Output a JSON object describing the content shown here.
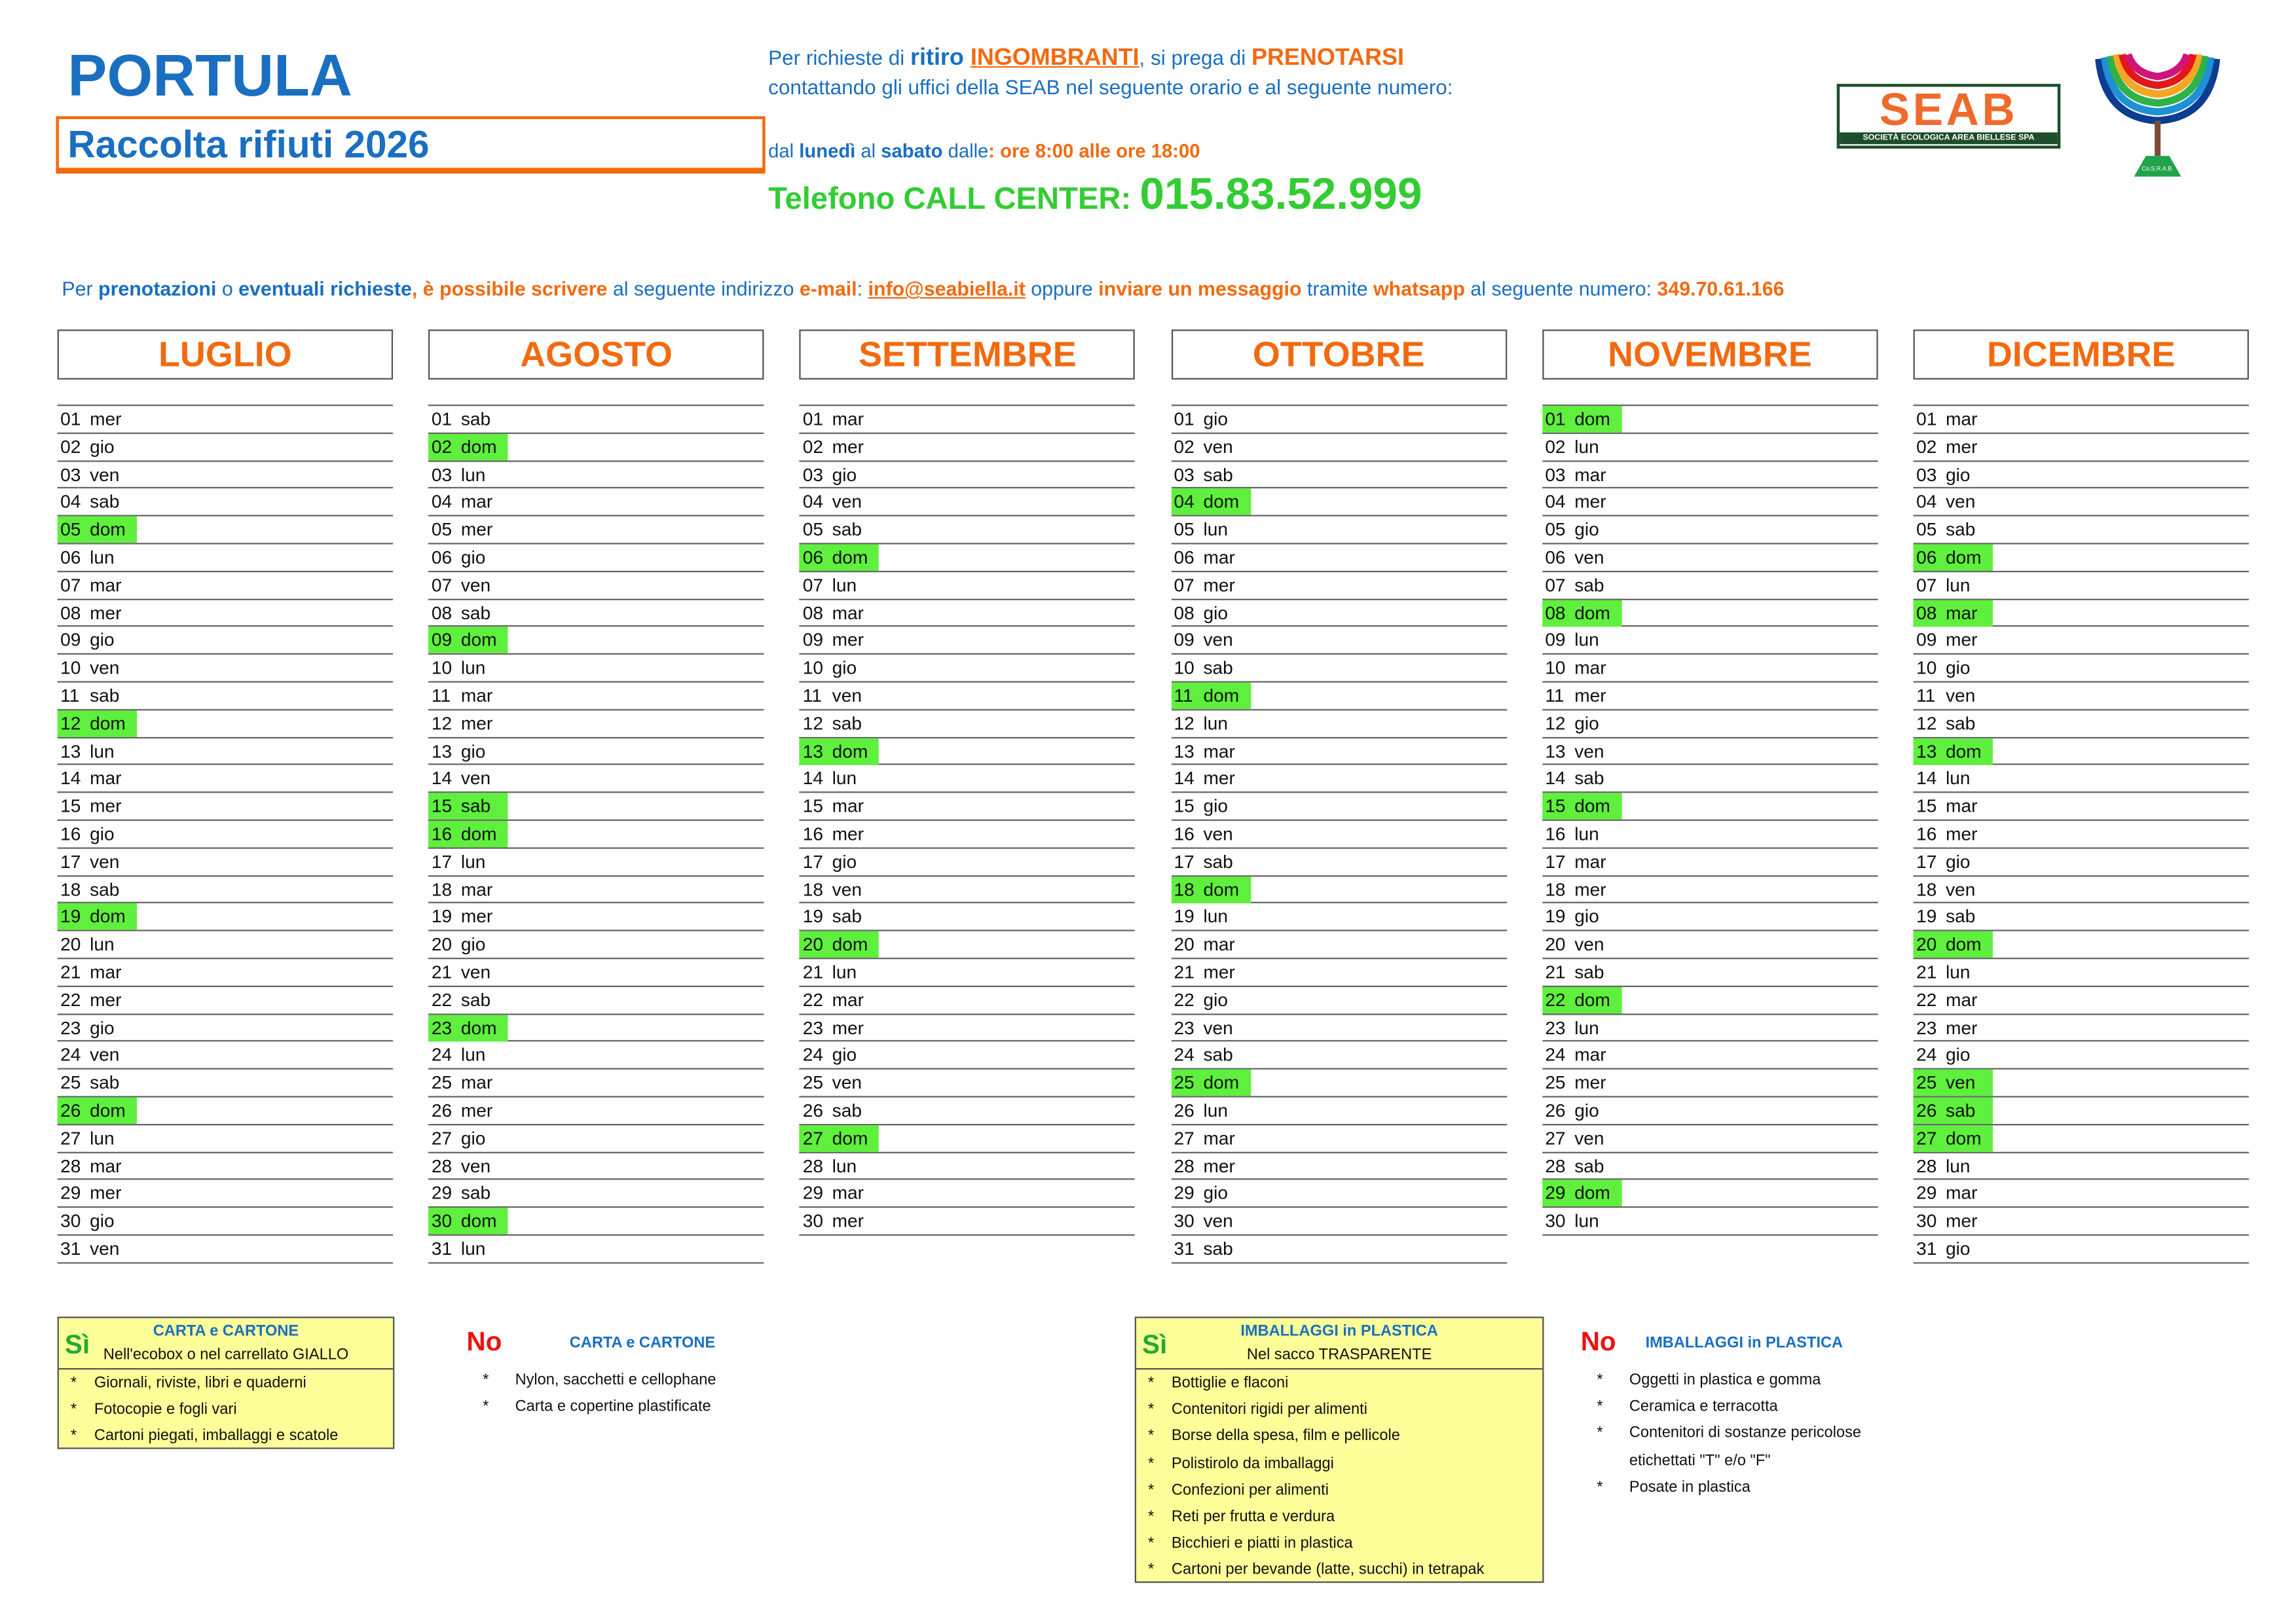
{
  "header": {
    "title": "PORTULA",
    "subtitle": "Raccolta rifiuti 2026",
    "line1": [
      "Per richieste di ",
      "ritiro ",
      "INGOMBRANTI",
      ", si prega di ",
      "PRENOTARSI"
    ],
    "line2": "contattando gli uffici della SEAB nel seguente orario e al seguente numero:",
    "line3": [
      "dal ",
      "lunedì",
      " al ",
      "sabato",
      " dalle",
      ": ore 8:00 alle ore 18:00"
    ],
    "phone_label": "Telefono CALL CENTER: ",
    "phone": "015.83.52.999",
    "line5": [
      "Per ",
      "prenotazioni",
      " o ",
      "eventuali richieste",
      ", è possibile scrivere",
      " al seguente indirizzo ",
      "e-mail",
      ": ",
      "info@seabiella.it",
      " oppure ",
      "inviare un messaggio",
      " tramite ",
      "whatsapp",
      " al seguente numero: ",
      "349.70.61.166"
    ]
  },
  "logos": {
    "seab": "SEAB",
    "seab_sub": "SOCIETÀ ECOLOGICA AREA BIELLESE SPA",
    "cosrab": "Co.S.R.A.B."
  },
  "colors": {
    "blue": "#1a6fc0",
    "orange": "#f26a10",
    "green": "#33cc33",
    "highlight": "#5ef03c",
    "legend_bg": "#ffff99"
  },
  "months": [
    {
      "name": "LUGLIO",
      "highlight": [
        "05",
        "12",
        "19",
        "26"
      ],
      "days": [
        "01 mer",
        "02 gio",
        "03 ven",
        "04 sab",
        "05 dom",
        "06 lun",
        "07 mar",
        "08 mer",
        "09 gio",
        "10 ven",
        "11 sab",
        "12 dom",
        "13 lun",
        "14 mar",
        "15 mer",
        "16 gio",
        "17 ven",
        "18 sab",
        "19 dom",
        "20 lun",
        "21 mar",
        "22 mer",
        "23 gio",
        "24 ven",
        "25 sab",
        "26 dom",
        "27 lun",
        "28 mar",
        "29 mer",
        "30 gio",
        "31 ven"
      ]
    },
    {
      "name": "AGOSTO",
      "highlight": [
        "02",
        "09",
        "15",
        "16",
        "23",
        "30"
      ],
      "days": [
        "01 sab",
        "02 dom",
        "03 lun",
        "04 mar",
        "05 mer",
        "06 gio",
        "07 ven",
        "08 sab",
        "09 dom",
        "10 lun",
        "11 mar",
        "12 mer",
        "13 gio",
        "14 ven",
        "15 sab",
        "16 dom",
        "17 lun",
        "18 mar",
        "19 mer",
        "20 gio",
        "21 ven",
        "22 sab",
        "23 dom",
        "24 lun",
        "25 mar",
        "26 mer",
        "27 gio",
        "28 ven",
        "29 sab",
        "30 dom",
        "31 lun"
      ]
    },
    {
      "name": "SETTEMBRE",
      "highlight": [
        "06",
        "13",
        "20",
        "27"
      ],
      "days": [
        "01 mar",
        "02 mer",
        "03 gio",
        "04 ven",
        "05 sab",
        "06 dom",
        "07 lun",
        "08 mar",
        "09 mer",
        "10 gio",
        "11 ven",
        "12 sab",
        "13 dom",
        "14 lun",
        "15 mar",
        "16 mer",
        "17 gio",
        "18 ven",
        "19 sab",
        "20 dom",
        "21 lun",
        "22 mar",
        "23 mer",
        "24 gio",
        "25 ven",
        "26 sab",
        "27 dom",
        "28 lun",
        "29 mar",
        "30 mer"
      ]
    },
    {
      "name": "OTTOBRE",
      "highlight": [
        "04",
        "11",
        "18",
        "25"
      ],
      "days": [
        "01 gio",
        "02 ven",
        "03 sab",
        "04 dom",
        "05 lun",
        "06 mar",
        "07 mer",
        "08 gio",
        "09 ven",
        "10 sab",
        "11 dom",
        "12 lun",
        "13 mar",
        "14 mer",
        "15 gio",
        "16 ven",
        "17 sab",
        "18 dom",
        "19 lun",
        "20 mar",
        "21 mer",
        "22 gio",
        "23 ven",
        "24 sab",
        "25 dom",
        "26 lun",
        "27 mar",
        "28 mer",
        "29 gio",
        "30 ven",
        "31 sab"
      ]
    },
    {
      "name": "NOVEMBRE",
      "highlight": [
        "01",
        "08",
        "15",
        "22",
        "29"
      ],
      "days": [
        "01 dom",
        "02 lun",
        "03 mar",
        "04 mer",
        "05 gio",
        "06 ven",
        "07 sab",
        "08 dom",
        "09 lun",
        "10 mar",
        "11 mer",
        "12 gio",
        "13 ven",
        "14 sab",
        "15 dom",
        "16 lun",
        "17 mar",
        "18 mer",
        "19 gio",
        "20 ven",
        "21 sab",
        "22 dom",
        "23 lun",
        "24 mar",
        "25 mer",
        "26 gio",
        "27 ven",
        "28 sab",
        "29 dom",
        "30 lun"
      ]
    },
    {
      "name": "DICEMBRE",
      "highlight": [
        "06",
        "08",
        "13",
        "20",
        "25",
        "26",
        "27"
      ],
      "days": [
        "01 mar",
        "02 mer",
        "03 gio",
        "04 ven",
        "05 sab",
        "06 dom",
        "07 lun",
        "08 mar",
        "09 mer",
        "10 gio",
        "11 ven",
        "12 sab",
        "13 dom",
        "14 lun",
        "15 mar",
        "16 mer",
        "17 gio",
        "18 ven",
        "19 sab",
        "20 dom",
        "21 lun",
        "22 mar",
        "23 mer",
        "24 gio",
        "25 ven",
        "26 sab",
        "27 dom",
        "28 lun",
        "29 mar",
        "30 mer",
        "31 gio"
      ]
    }
  ],
  "legend": {
    "carta_si": {
      "mark": "Sì",
      "title": "CARTA e CARTONE",
      "sub": "Nell'ecobox o nel carrellato GIALLO",
      "items": [
        "Giornali, riviste, libri e quaderni",
        "Fotocopie e fogli vari",
        "Cartoni piegati, imballaggi e scatole"
      ]
    },
    "carta_no": {
      "mark": "No",
      "title": "CARTA e CARTONE",
      "items": [
        "Nylon, sacchetti e cellophane",
        "Carta e copertine plastificate"
      ]
    },
    "plastica_si": {
      "mark": "Sì",
      "title": "IMBALLAGGI in PLASTICA",
      "sub": "Nel sacco TRASPARENTE",
      "items": [
        "Bottiglie e flaconi",
        "Contenitori rigidi per alimenti",
        "Borse della spesa, film e pellicole",
        "Polistirolo da imballaggi",
        "Confezioni per alimenti",
        "Reti per frutta e verdura",
        "Bicchieri e piatti in plastica",
        "Cartoni per bevande (latte, succhi) in tetrapak"
      ]
    },
    "plastica_no": {
      "mark": "No",
      "title": "IMBALLAGGI in PLASTICA",
      "items": [
        "Oggetti in plastica e gomma",
        "Ceramica e terracotta",
        "Contenitori di sostanze pericolose",
        "etichettati \"T\" e/o \"F\"",
        "Posate in plastica"
      ]
    },
    "bullet": "*"
  }
}
